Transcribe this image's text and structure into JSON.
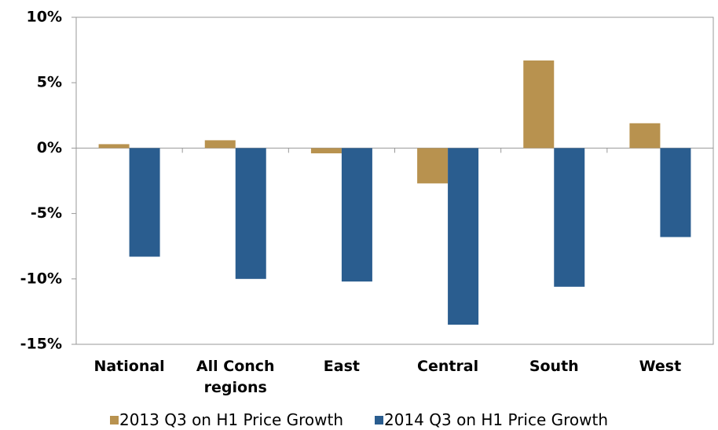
{
  "chart_data": {
    "type": "bar",
    "categories": [
      "National",
      "All Conch regions",
      "East",
      "Central",
      "South",
      "West"
    ],
    "series": [
      {
        "name": "2013 Q3 on H1 Price Growth",
        "color": "#b8924f",
        "values": [
          0.3,
          0.6,
          -0.4,
          -2.7,
          6.7,
          1.9
        ]
      },
      {
        "name": "2014 Q3 on H1 Price Growth",
        "color": "#2a5d8f",
        "values": [
          -8.3,
          -10.0,
          -10.2,
          -13.5,
          -10.6,
          -6.8
        ]
      }
    ],
    "ylim": [
      -15,
      10
    ],
    "yticks": [
      {
        "value": -15,
        "label": "-15%"
      },
      {
        "value": -10,
        "label": "-10%"
      },
      {
        "value": -5,
        "label": "-5%"
      },
      {
        "value": 0,
        "label": "0%"
      },
      {
        "value": 5,
        "label": "5%"
      },
      {
        "value": 10,
        "label": "10%"
      }
    ],
    "grid": false,
    "legend": "bottom"
  }
}
